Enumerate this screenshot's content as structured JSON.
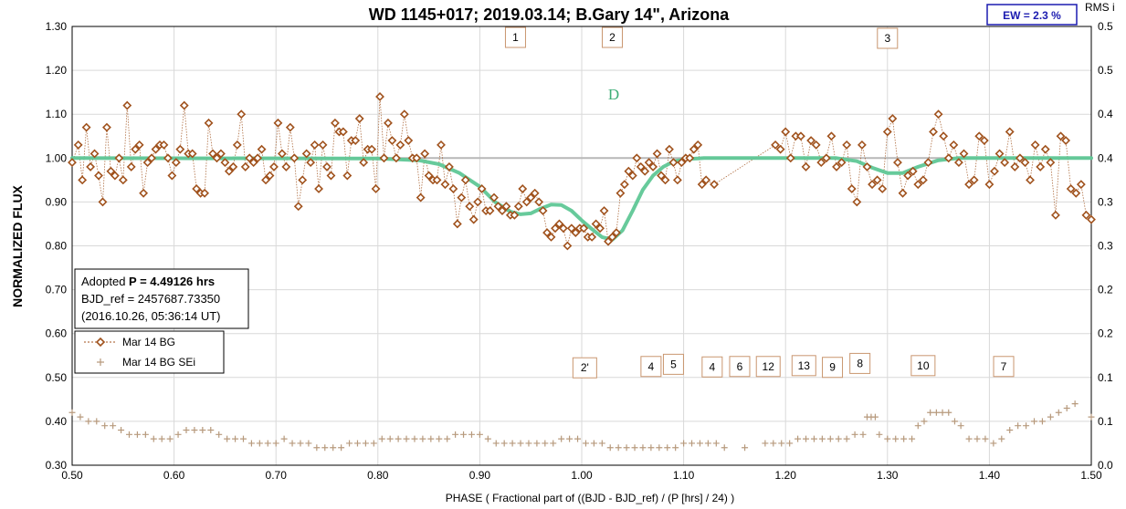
{
  "chart_data": {
    "type": "scatter",
    "title": "WD 1145+017; 2019.03.14; B.Gary 14\",  Arizona",
    "xlabel": "PHASE ( Fractional part of ((BJD - BJD_ref) / (P [hrs] / 24) )",
    "ylabel": "NORMALIZED FLUX",
    "y2label": "RMS i",
    "xlim": [
      0.5,
      1.5
    ],
    "ylim": [
      0.3,
      1.3
    ],
    "y2lim": [
      0.0,
      0.5
    ],
    "x_ticks": [
      "0.50",
      "0.60",
      "0.70",
      "0.80",
      "0.90",
      "1.00",
      "1.10",
      "1.20",
      "1.30",
      "1.40",
      "1.50"
    ],
    "y_ticks": [
      "0.30",
      "0.40",
      "0.50",
      "0.60",
      "0.70",
      "0.80",
      "0.90",
      "1.00",
      "1.10",
      "1.20",
      "1.30"
    ],
    "y2_ticks": [
      "0.0",
      "0.1",
      "0.1",
      "0.2",
      "0.2",
      "0.3",
      "0.3",
      "0.4",
      "0.4",
      "0.5",
      "0.5"
    ],
    "grid": true,
    "ew_label": "EW =  2.3 %",
    "info_box": {
      "line1_prefix": "Adopted ",
      "line1_bold": "P = 4.49126 hrs",
      "line2": "BJD_ref = 2457687.73350",
      "line3": "(2016.10.26, 05:36:14 UT)"
    },
    "legend": [
      {
        "name": "Mar 14 BG",
        "marker": "diamond"
      },
      {
        "name": "Mar 14 BG SEi",
        "marker": "plus"
      }
    ],
    "dip_label": "D",
    "markers_top": [
      {
        "label": "1",
        "x": 0.935,
        "y": 1.275
      },
      {
        "label": "2",
        "x": 1.03,
        "y": 1.275
      },
      {
        "label": "3",
        "x": 1.3,
        "y": 1.273
      }
    ],
    "markers_bottom": [
      {
        "label": "2'",
        "x": 1.003,
        "y": 0.522
      },
      {
        "label": "4",
        "x": 1.068,
        "y": 0.525
      },
      {
        "label": "5",
        "x": 1.09,
        "y": 0.53
      },
      {
        "label": "4",
        "x": 1.128,
        "y": 0.524
      },
      {
        "label": "6",
        "x": 1.155,
        "y": 0.525
      },
      {
        "label": "12",
        "x": 1.183,
        "y": 0.525
      },
      {
        "label": "13",
        "x": 1.218,
        "y": 0.527
      },
      {
        "label": "9",
        "x": 1.246,
        "y": 0.523
      },
      {
        "label": "8",
        "x": 1.273,
        "y": 0.532
      },
      {
        "label": "10",
        "x": 1.335,
        "y": 0.527
      },
      {
        "label": "7",
        "x": 1.414,
        "y": 0.525
      }
    ],
    "colors": {
      "data": "#a0521d",
      "sei": "#b79a7d",
      "model": "#5fc796",
      "model_flat": "#6aaa8a",
      "ref_line": "#b7b7b7",
      "grid": "#d9d9d9",
      "marker_border": "#c9966f",
      "ew_border": "#1b1bb0"
    },
    "model": [
      [
        0.5,
        1.0
      ],
      [
        0.8,
        0.999
      ],
      [
        0.84,
        0.995
      ],
      [
        0.86,
        0.986
      ],
      [
        0.88,
        0.966
      ],
      [
        0.9,
        0.935
      ],
      [
        0.915,
        0.9
      ],
      [
        0.93,
        0.878
      ],
      [
        0.94,
        0.872
      ],
      [
        0.95,
        0.874
      ],
      [
        0.96,
        0.885
      ],
      [
        0.97,
        0.894
      ],
      [
        0.98,
        0.893
      ],
      [
        0.99,
        0.88
      ],
      [
        1.0,
        0.858
      ],
      [
        1.01,
        0.838
      ],
      [
        1.02,
        0.82
      ],
      [
        1.03,
        0.814
      ],
      [
        1.04,
        0.835
      ],
      [
        1.05,
        0.88
      ],
      [
        1.06,
        0.928
      ],
      [
        1.07,
        0.96
      ],
      [
        1.08,
        0.98
      ],
      [
        1.09,
        0.992
      ],
      [
        1.1,
        0.997
      ],
      [
        1.12,
        1.0
      ],
      [
        1.25,
        1.0
      ],
      [
        1.27,
        0.993
      ],
      [
        1.285,
        0.978
      ],
      [
        1.3,
        0.966
      ],
      [
        1.315,
        0.966
      ],
      [
        1.33,
        0.98
      ],
      [
        1.35,
        0.995
      ],
      [
        1.37,
        1.0
      ],
      [
        1.5,
        1.0
      ]
    ],
    "data_points": [
      [
        0.5,
        0.99
      ],
      [
        0.506,
        1.03
      ],
      [
        0.51,
        0.95
      ],
      [
        0.514,
        1.07
      ],
      [
        0.518,
        0.98
      ],
      [
        0.522,
        1.01
      ],
      [
        0.526,
        0.96
      ],
      [
        0.53,
        0.9
      ],
      [
        0.534,
        1.07
      ],
      [
        0.538,
        0.97
      ],
      [
        0.542,
        0.96
      ],
      [
        0.546,
        1.0
      ],
      [
        0.55,
        0.95
      ],
      [
        0.554,
        1.12
      ],
      [
        0.558,
        0.98
      ],
      [
        0.562,
        1.02
      ],
      [
        0.566,
        1.03
      ],
      [
        0.57,
        0.92
      ],
      [
        0.574,
        0.99
      ],
      [
        0.578,
        1.0
      ],
      [
        0.582,
        1.02
      ],
      [
        0.586,
        1.03
      ],
      [
        0.59,
        1.03
      ],
      [
        0.594,
        1.0
      ],
      [
        0.598,
        0.96
      ],
      [
        0.602,
        0.99
      ],
      [
        0.606,
        1.02
      ],
      [
        0.61,
        1.12
      ],
      [
        0.614,
        1.01
      ],
      [
        0.618,
        1.01
      ],
      [
        0.622,
        0.93
      ],
      [
        0.626,
        0.92
      ],
      [
        0.63,
        0.92
      ],
      [
        0.634,
        1.08
      ],
      [
        0.638,
        1.01
      ],
      [
        0.642,
        1.0
      ],
      [
        0.646,
        1.01
      ],
      [
        0.65,
        0.99
      ],
      [
        0.654,
        0.97
      ],
      [
        0.658,
        0.98
      ],
      [
        0.662,
        1.03
      ],
      [
        0.666,
        1.1
      ],
      [
        0.67,
        0.98
      ],
      [
        0.674,
        1.0
      ],
      [
        0.678,
        0.99
      ],
      [
        0.682,
        1.0
      ],
      [
        0.686,
        1.02
      ],
      [
        0.69,
        0.95
      ],
      [
        0.694,
        0.96
      ],
      [
        0.698,
        0.98
      ],
      [
        0.702,
        1.08
      ],
      [
        0.706,
        1.01
      ],
      [
        0.71,
        0.98
      ],
      [
        0.714,
        1.07
      ],
      [
        0.718,
        1.0
      ],
      [
        0.722,
        0.89
      ],
      [
        0.726,
        0.95
      ],
      [
        0.73,
        1.01
      ],
      [
        0.734,
        0.99
      ],
      [
        0.738,
        1.03
      ],
      [
        0.742,
        0.93
      ],
      [
        0.746,
        1.03
      ],
      [
        0.75,
        0.98
      ],
      [
        0.754,
        0.96
      ],
      [
        0.758,
        1.08
      ],
      [
        0.762,
        1.06
      ],
      [
        0.766,
        1.06
      ],
      [
        0.77,
        0.96
      ],
      [
        0.774,
        1.04
      ],
      [
        0.778,
        1.04
      ],
      [
        0.782,
        1.09
      ],
      [
        0.786,
        0.99
      ],
      [
        0.79,
        1.02
      ],
      [
        0.794,
        1.02
      ],
      [
        0.798,
        0.93
      ],
      [
        0.802,
        1.14
      ],
      [
        0.806,
        1.0
      ],
      [
        0.81,
        1.08
      ],
      [
        0.814,
        1.04
      ],
      [
        0.818,
        1.0
      ],
      [
        0.822,
        1.03
      ],
      [
        0.826,
        1.1
      ],
      [
        0.83,
        1.04
      ],
      [
        0.834,
        1.0
      ],
      [
        0.838,
        1.0
      ],
      [
        0.842,
        0.91
      ],
      [
        0.846,
        1.01
      ],
      [
        0.85,
        0.96
      ],
      [
        0.854,
        0.95
      ],
      [
        0.858,
        0.95
      ],
      [
        0.862,
        1.03
      ],
      [
        0.866,
        0.94
      ],
      [
        0.87,
        0.98
      ],
      [
        0.874,
        0.93
      ],
      [
        0.878,
        0.85
      ],
      [
        0.882,
        0.91
      ],
      [
        0.886,
        0.95
      ],
      [
        0.89,
        0.89
      ],
      [
        0.894,
        0.86
      ],
      [
        0.898,
        0.9
      ],
      [
        0.902,
        0.93
      ],
      [
        0.906,
        0.88
      ],
      [
        0.91,
        0.88
      ],
      [
        0.914,
        0.91
      ],
      [
        0.918,
        0.89
      ],
      [
        0.922,
        0.88
      ],
      [
        0.926,
        0.89
      ],
      [
        0.93,
        0.87
      ],
      [
        0.934,
        0.87
      ],
      [
        0.938,
        0.89
      ],
      [
        0.942,
        0.93
      ],
      [
        0.946,
        0.9
      ],
      [
        0.95,
        0.91
      ],
      [
        0.954,
        0.92
      ],
      [
        0.958,
        0.9
      ],
      [
        0.962,
        0.88
      ],
      [
        0.966,
        0.83
      ],
      [
        0.97,
        0.82
      ],
      [
        0.974,
        0.84
      ],
      [
        0.978,
        0.85
      ],
      [
        0.982,
        0.84
      ],
      [
        0.986,
        0.8
      ],
      [
        0.99,
        0.84
      ],
      [
        0.994,
        0.83
      ],
      [
        0.998,
        0.84
      ],
      [
        1.002,
        0.84
      ],
      [
        1.006,
        0.82
      ],
      [
        1.01,
        0.82
      ],
      [
        1.014,
        0.85
      ],
      [
        1.018,
        0.84
      ],
      [
        1.022,
        0.88
      ],
      [
        1.026,
        0.81
      ],
      [
        1.03,
        0.82
      ],
      [
        1.034,
        0.83
      ],
      [
        1.038,
        0.92
      ],
      [
        1.042,
        0.94
      ],
      [
        1.046,
        0.97
      ],
      [
        1.05,
        0.96
      ],
      [
        1.054,
        1.0
      ],
      [
        1.058,
        0.98
      ],
      [
        1.062,
        0.97
      ],
      [
        1.066,
        0.99
      ],
      [
        1.07,
        0.98
      ],
      [
        1.074,
        1.01
      ],
      [
        1.078,
        0.96
      ],
      [
        1.082,
        0.95
      ],
      [
        1.086,
        1.02
      ],
      [
        1.09,
        0.99
      ],
      [
        1.094,
        0.95
      ],
      [
        1.098,
        0.99
      ],
      [
        1.102,
        1.0
      ],
      [
        1.106,
        1.0
      ],
      [
        1.11,
        1.02
      ],
      [
        1.114,
        1.03
      ],
      [
        1.118,
        0.94
      ],
      [
        1.122,
        0.95
      ],
      [
        1.13,
        0.94
      ],
      [
        1.19,
        1.03
      ],
      [
        1.195,
        1.02
      ],
      [
        1.2,
        1.06
      ],
      [
        1.205,
        1.0
      ],
      [
        1.21,
        1.05
      ],
      [
        1.215,
        1.05
      ],
      [
        1.22,
        0.98
      ],
      [
        1.225,
        1.04
      ],
      [
        1.23,
        1.03
      ],
      [
        1.235,
        0.99
      ],
      [
        1.24,
        1.0
      ],
      [
        1.245,
        1.05
      ],
      [
        1.25,
        0.98
      ],
      [
        1.255,
        0.99
      ],
      [
        1.26,
        1.03
      ],
      [
        1.265,
        0.93
      ],
      [
        1.27,
        0.9
      ],
      [
        1.275,
        1.03
      ],
      [
        1.28,
        0.98
      ],
      [
        1.285,
        0.94
      ],
      [
        1.29,
        0.95
      ],
      [
        1.295,
        0.93
      ],
      [
        1.3,
        1.06
      ],
      [
        1.305,
        1.09
      ],
      [
        1.31,
        0.99
      ],
      [
        1.315,
        0.92
      ],
      [
        1.32,
        0.96
      ],
      [
        1.325,
        0.97
      ],
      [
        1.33,
        0.94
      ],
      [
        1.335,
        0.95
      ],
      [
        1.34,
        0.99
      ],
      [
        1.345,
        1.06
      ],
      [
        1.35,
        1.1
      ],
      [
        1.355,
        1.05
      ],
      [
        1.36,
        1.0
      ],
      [
        1.365,
        1.03
      ],
      [
        1.37,
        0.99
      ],
      [
        1.375,
        1.01
      ],
      [
        1.38,
        0.94
      ],
      [
        1.385,
        0.95
      ],
      [
        1.39,
        1.05
      ],
      [
        1.395,
        1.04
      ],
      [
        1.4,
        0.94
      ],
      [
        1.405,
        0.97
      ],
      [
        1.41,
        1.01
      ],
      [
        1.415,
        0.99
      ],
      [
        1.42,
        1.06
      ],
      [
        1.425,
        0.98
      ],
      [
        1.43,
        1.0
      ],
      [
        1.435,
        0.99
      ],
      [
        1.44,
        0.95
      ],
      [
        1.445,
        1.03
      ],
      [
        1.45,
        0.98
      ],
      [
        1.455,
        1.02
      ],
      [
        1.46,
        0.99
      ],
      [
        1.465,
        0.87
      ],
      [
        1.47,
        1.05
      ],
      [
        1.475,
        1.04
      ],
      [
        1.48,
        0.93
      ],
      [
        1.485,
        0.92
      ],
      [
        1.49,
        0.94
      ],
      [
        1.495,
        0.87
      ],
      [
        1.5,
        0.86
      ]
    ],
    "sei_points": [
      [
        0.5,
        0.42
      ],
      [
        0.508,
        0.41
      ],
      [
        0.516,
        0.4
      ],
      [
        0.524,
        0.4
      ],
      [
        0.532,
        0.39
      ],
      [
        0.54,
        0.39
      ],
      [
        0.548,
        0.38
      ],
      [
        0.556,
        0.37
      ],
      [
        0.564,
        0.37
      ],
      [
        0.572,
        0.37
      ],
      [
        0.58,
        0.36
      ],
      [
        0.588,
        0.36
      ],
      [
        0.596,
        0.36
      ],
      [
        0.604,
        0.37
      ],
      [
        0.612,
        0.38
      ],
      [
        0.62,
        0.38
      ],
      [
        0.628,
        0.38
      ],
      [
        0.636,
        0.38
      ],
      [
        0.644,
        0.37
      ],
      [
        0.652,
        0.36
      ],
      [
        0.66,
        0.36
      ],
      [
        0.668,
        0.36
      ],
      [
        0.676,
        0.35
      ],
      [
        0.684,
        0.35
      ],
      [
        0.692,
        0.35
      ],
      [
        0.7,
        0.35
      ],
      [
        0.708,
        0.36
      ],
      [
        0.716,
        0.35
      ],
      [
        0.724,
        0.35
      ],
      [
        0.732,
        0.35
      ],
      [
        0.74,
        0.34
      ],
      [
        0.748,
        0.34
      ],
      [
        0.756,
        0.34
      ],
      [
        0.764,
        0.34
      ],
      [
        0.772,
        0.35
      ],
      [
        0.78,
        0.35
      ],
      [
        0.788,
        0.35
      ],
      [
        0.796,
        0.35
      ],
      [
        0.804,
        0.36
      ],
      [
        0.812,
        0.36
      ],
      [
        0.82,
        0.36
      ],
      [
        0.828,
        0.36
      ],
      [
        0.836,
        0.36
      ],
      [
        0.844,
        0.36
      ],
      [
        0.852,
        0.36
      ],
      [
        0.86,
        0.36
      ],
      [
        0.868,
        0.36
      ],
      [
        0.876,
        0.37
      ],
      [
        0.884,
        0.37
      ],
      [
        0.892,
        0.37
      ],
      [
        0.9,
        0.37
      ],
      [
        0.908,
        0.36
      ],
      [
        0.916,
        0.35
      ],
      [
        0.924,
        0.35
      ],
      [
        0.932,
        0.35
      ],
      [
        0.94,
        0.35
      ],
      [
        0.948,
        0.35
      ],
      [
        0.956,
        0.35
      ],
      [
        0.964,
        0.35
      ],
      [
        0.972,
        0.35
      ],
      [
        0.98,
        0.36
      ],
      [
        0.988,
        0.36
      ],
      [
        0.996,
        0.36
      ],
      [
        1.004,
        0.35
      ],
      [
        1.012,
        0.35
      ],
      [
        1.02,
        0.35
      ],
      [
        1.028,
        0.34
      ],
      [
        1.036,
        0.34
      ],
      [
        1.044,
        0.34
      ],
      [
        1.052,
        0.34
      ],
      [
        1.06,
        0.34
      ],
      [
        1.068,
        0.34
      ],
      [
        1.076,
        0.34
      ],
      [
        1.084,
        0.34
      ],
      [
        1.092,
        0.34
      ],
      [
        1.1,
        0.35
      ],
      [
        1.108,
        0.35
      ],
      [
        1.116,
        0.35
      ],
      [
        1.124,
        0.35
      ],
      [
        1.132,
        0.35
      ],
      [
        1.14,
        0.34
      ],
      [
        1.16,
        0.34
      ],
      [
        1.18,
        0.35
      ],
      [
        1.188,
        0.35
      ],
      [
        1.196,
        0.35
      ],
      [
        1.204,
        0.35
      ],
      [
        1.212,
        0.36
      ],
      [
        1.22,
        0.36
      ],
      [
        1.228,
        0.36
      ],
      [
        1.236,
        0.36
      ],
      [
        1.244,
        0.36
      ],
      [
        1.252,
        0.36
      ],
      [
        1.26,
        0.36
      ],
      [
        1.268,
        0.37
      ],
      [
        1.276,
        0.37
      ],
      [
        1.28,
        0.41
      ],
      [
        1.284,
        0.41
      ],
      [
        1.288,
        0.41
      ],
      [
        1.292,
        0.37
      ],
      [
        1.3,
        0.36
      ],
      [
        1.308,
        0.36
      ],
      [
        1.316,
        0.36
      ],
      [
        1.324,
        0.36
      ],
      [
        1.33,
        0.39
      ],
      [
        1.336,
        0.4
      ],
      [
        1.342,
        0.42
      ],
      [
        1.348,
        0.42
      ],
      [
        1.354,
        0.42
      ],
      [
        1.36,
        0.42
      ],
      [
        1.366,
        0.4
      ],
      [
        1.372,
        0.39
      ],
      [
        1.38,
        0.36
      ],
      [
        1.388,
        0.36
      ],
      [
        1.396,
        0.36
      ],
      [
        1.404,
        0.35
      ],
      [
        1.412,
        0.36
      ],
      [
        1.42,
        0.38
      ],
      [
        1.428,
        0.39
      ],
      [
        1.436,
        0.39
      ],
      [
        1.444,
        0.4
      ],
      [
        1.452,
        0.4
      ],
      [
        1.46,
        0.41
      ],
      [
        1.468,
        0.42
      ],
      [
        1.476,
        0.43
      ],
      [
        1.484,
        0.44
      ],
      [
        1.5,
        0.41
      ]
    ]
  }
}
